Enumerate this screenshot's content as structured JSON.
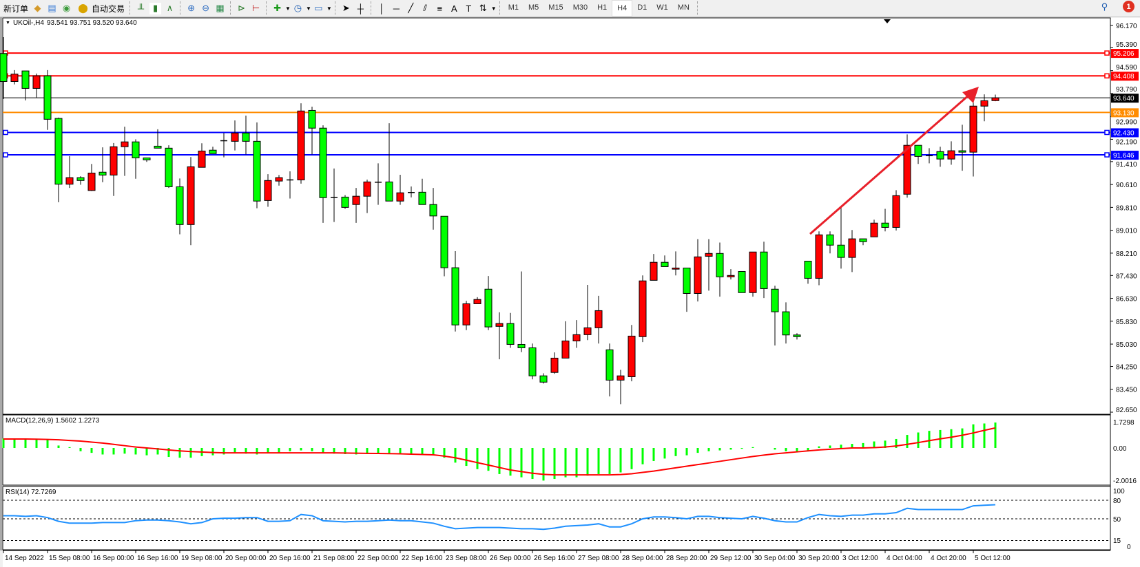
{
  "toolbar": {
    "new_order_label": "新订单",
    "auto_trading_label": "自动交易",
    "timeframes": [
      "M1",
      "M5",
      "M15",
      "M30",
      "H1",
      "H4",
      "D1",
      "W1",
      "MN"
    ],
    "active_timeframe": "H4",
    "notification_count": "1",
    "icons": [
      "new-order-icon",
      "market-watch-icon",
      "data-window-icon",
      "signals-icon",
      "auto-trading-icon",
      "bar-chart-icon",
      "candlestick-icon",
      "line-chart-icon",
      "zoom-in-icon",
      "zoom-out-icon",
      "tile-windows-icon",
      "auto-scroll-icon",
      "chart-shift-icon",
      "indicators-icon",
      "periods-icon",
      "templates-icon",
      "cursor-icon",
      "crosshair-icon",
      "vertical-line-icon",
      "horizontal-line-icon",
      "trendline-icon",
      "fibonacci-icon",
      "equidistant-channel-icon",
      "text-icon",
      "text-label-icon",
      "arrows-icon",
      "search-icon",
      "notification-icon"
    ]
  },
  "chart": {
    "symbol_label": "UKOil-,H4",
    "ohlc_label": "93.541 93.751 93.520 93.640",
    "macd_label": "MACD(12,26,9) 1.5602 1.2273",
    "rsi_label": "RSI(14) 72.7269"
  },
  "chart_data": {
    "type": "candlestick",
    "symbol": "UKOil-",
    "timeframe": "H4",
    "up_color": "#ff0000",
    "down_color": "#00ff00",
    "price_axis_ticks": [
      "96.170",
      "95.390",
      "94.590",
      "93.790",
      "92.990",
      "92.190",
      "91.410",
      "90.610",
      "89.810",
      "89.010",
      "88.210",
      "87.430",
      "86.630",
      "85.830",
      "85.030",
      "84.250",
      "83.450",
      "82.650"
    ],
    "ylim": [
      82.65,
      96.17
    ],
    "time_axis_ticks": [
      "14 Sep 2022",
      "15 Sep 08:00",
      "16 Sep 00:00",
      "16 Sep 16:00",
      "19 Sep 08:00",
      "20 Sep 00:00",
      "20 Sep 16:00",
      "21 Sep 08:00",
      "22 Sep 00:00",
      "22 Sep 16:00",
      "23 Sep 08:00",
      "26 Sep 00:00",
      "26 Sep 16:00",
      "27 Sep 08:00",
      "28 Sep 04:00",
      "28 Sep 20:00",
      "29 Sep 12:00",
      "30 Sep 04:00",
      "30 Sep 20:00",
      "3 Oct 12:00",
      "4 Oct 04:00",
      "4 Oct 20:00",
      "5 Oct 12:00"
    ],
    "ohlc": [
      [
        95.19,
        95.76,
        93.6,
        94.21
      ],
      [
        94.21,
        94.61,
        94.11,
        94.47
      ],
      [
        94.58,
        94.58,
        93.55,
        93.97
      ],
      [
        93.97,
        94.49,
        93.65,
        94.41
      ],
      [
        94.41,
        94.61,
        92.52,
        92.89
      ],
      [
        92.92,
        92.95,
        89.99,
        90.62
      ],
      [
        90.62,
        91.6,
        90.49,
        90.85
      ],
      [
        90.85,
        90.9,
        90.6,
        90.75
      ],
      [
        90.4,
        91.33,
        90.38,
        91.01
      ],
      [
        91.04,
        91.91,
        90.69,
        90.94
      ],
      [
        90.94,
        92.06,
        90.21,
        91.93
      ],
      [
        91.93,
        92.63,
        90.91,
        92.1
      ],
      [
        92.1,
        92.19,
        90.81,
        91.54
      ],
      [
        91.54,
        91.54,
        91.4,
        91.47
      ],
      [
        91.95,
        92.54,
        91.88,
        91.88
      ],
      [
        91.88,
        91.98,
        90.49,
        90.53
      ],
      [
        90.53,
        90.82,
        88.87,
        89.21
      ],
      [
        89.21,
        91.57,
        88.49,
        91.23
      ],
      [
        91.21,
        92.05,
        91.21,
        91.78
      ],
      [
        91.81,
        91.93,
        91.69,
        91.69
      ],
      [
        92.14,
        92.41,
        91.56,
        92.14
      ],
      [
        92.12,
        92.85,
        91.8,
        92.41
      ],
      [
        92.41,
        93.02,
        91.66,
        92.12
      ],
      [
        92.12,
        92.78,
        89.78,
        90.03
      ],
      [
        90.05,
        90.97,
        89.83,
        90.75
      ],
      [
        90.73,
        90.94,
        90.57,
        90.85
      ],
      [
        90.77,
        91.07,
        90.12,
        90.77
      ],
      [
        90.77,
        93.45,
        90.64,
        93.18
      ],
      [
        93.2,
        93.33,
        91.66,
        92.58
      ],
      [
        92.58,
        92.68,
        89.27,
        90.15
      ],
      [
        90.16,
        91.17,
        89.3,
        90.16
      ],
      [
        90.17,
        90.24,
        89.76,
        89.81
      ],
      [
        89.91,
        90.49,
        89.27,
        90.2
      ],
      [
        90.2,
        90.78,
        89.61,
        90.7
      ],
      [
        90.69,
        91.35,
        89.9,
        90.69
      ],
      [
        90.7,
        92.75,
        90.03,
        90.03
      ],
      [
        90.03,
        90.95,
        89.9,
        90.32
      ],
      [
        90.33,
        90.54,
        90.16,
        90.33
      ],
      [
        90.34,
        90.81,
        89.91,
        89.91
      ],
      [
        89.91,
        90.49,
        89.03,
        89.51
      ],
      [
        89.5,
        89.5,
        87.4,
        87.7
      ],
      [
        87.7,
        88.28,
        85.47,
        85.7
      ],
      [
        85.7,
        86.54,
        85.52,
        86.44
      ],
      [
        86.44,
        86.67,
        86.44,
        86.59
      ],
      [
        86.95,
        87.41,
        85.52,
        85.63
      ],
      [
        85.65,
        86.14,
        84.5,
        85.75
      ],
      [
        85.75,
        86.12,
        84.9,
        85.02
      ],
      [
        85.02,
        87.57,
        84.75,
        84.9
      ],
      [
        84.9,
        85.05,
        83.8,
        83.92
      ],
      [
        83.92,
        84.01,
        83.65,
        83.7
      ],
      [
        84.04,
        84.74,
        83.99,
        84.54
      ],
      [
        84.54,
        85.83,
        84.54,
        85.14
      ],
      [
        85.14,
        85.87,
        84.9,
        85.36
      ],
      [
        85.36,
        87.1,
        85.17,
        85.6
      ],
      [
        85.6,
        86.72,
        85.05,
        86.2
      ],
      [
        84.83,
        85.05,
        83.2,
        83.77
      ],
      [
        83.77,
        84.13,
        82.93,
        83.92
      ],
      [
        83.89,
        85.7,
        83.73,
        85.31
      ],
      [
        85.29,
        87.43,
        85.1,
        87.24
      ],
      [
        87.26,
        88.18,
        87.26,
        87.89
      ],
      [
        87.89,
        88.13,
        87.74,
        87.74
      ],
      [
        87.65,
        88.27,
        87.43,
        87.69
      ],
      [
        87.69,
        87.69,
        86.16,
        86.8
      ],
      [
        86.8,
        88.7,
        86.52,
        88.08
      ],
      [
        88.1,
        88.7,
        86.9,
        88.2
      ],
      [
        88.2,
        88.58,
        86.69,
        87.38
      ],
      [
        87.38,
        87.65,
        87.29,
        87.43
      ],
      [
        87.57,
        87.57,
        86.83,
        86.83
      ],
      [
        86.83,
        88.25,
        86.69,
        88.25
      ],
      [
        88.25,
        88.61,
        86.64,
        86.97
      ],
      [
        86.95,
        87.07,
        84.98,
        86.16
      ],
      [
        86.16,
        86.49,
        85.05,
        85.35
      ],
      [
        85.35,
        85.41,
        85.19,
        85.29
      ],
      [
        87.93,
        87.93,
        87.14,
        87.33
      ],
      [
        87.33,
        88.97,
        87.09,
        88.85
      ],
      [
        88.85,
        88.97,
        88.2,
        88.49
      ],
      [
        88.49,
        89.79,
        87.67,
        88.06
      ],
      [
        88.06,
        89.02,
        87.55,
        88.71
      ],
      [
        88.71,
        88.71,
        88.49,
        88.61
      ],
      [
        88.78,
        89.38,
        88.78,
        89.26
      ],
      [
        89.26,
        89.76,
        88.97,
        89.11
      ],
      [
        89.11,
        90.41,
        89.0,
        90.22
      ],
      [
        90.27,
        92.36,
        90.15,
        91.98
      ],
      [
        91.98,
        91.98,
        91.33,
        91.59
      ],
      [
        91.59,
        91.88,
        91.35,
        91.62
      ],
      [
        91.76,
        91.93,
        91.23,
        91.5
      ],
      [
        91.5,
        92.12,
        91.3,
        91.79
      ],
      [
        91.79,
        92.7,
        91.09,
        91.74
      ],
      [
        91.74,
        93.67,
        90.89,
        93.35
      ],
      [
        93.35,
        93.76,
        92.82,
        93.54
      ],
      [
        93.541,
        93.751,
        93.52,
        93.64
      ]
    ],
    "horizontal_lines": [
      {
        "price": "95.206",
        "color": "#ff0000"
      },
      {
        "price": "94.408",
        "color": "#ff0000"
      },
      {
        "price": "93.640",
        "color": "#000000",
        "kind": "current-price"
      },
      {
        "price": "93.130",
        "color": "#ff8c00"
      },
      {
        "price": "92.430",
        "color": "#0000ff"
      },
      {
        "price": "91.646",
        "color": "#0000ff"
      }
    ],
    "trend_arrow_color": "#e8202a",
    "macd": {
      "axis_ticks": [
        "1.7298",
        "0.00",
        "-2.0016"
      ],
      "ylim": [
        -2.0016,
        1.7298
      ],
      "histogram_color": "#00ff00",
      "signal_color": "#ff0000",
      "histogram": [
        0.58,
        0.58,
        0.57,
        0.56,
        0.52,
        0.15,
        0.05,
        -0.2,
        -0.3,
        -0.4,
        -0.4,
        -0.35,
        -0.4,
        -0.45,
        -0.4,
        -0.55,
        -0.6,
        -0.6,
        -0.5,
        -0.45,
        -0.4,
        -0.3,
        -0.35,
        -0.4,
        -0.3,
        -0.3,
        -0.2,
        -0.15,
        -0.2,
        -0.3,
        -0.35,
        -0.38,
        -0.4,
        -0.38,
        -0.36,
        -0.38,
        -0.4,
        -0.4,
        -0.42,
        -0.45,
        -0.6,
        -0.9,
        -1.1,
        -1.3,
        -1.4,
        -1.6,
        -1.7,
        -1.8,
        -1.9,
        -2.0,
        -1.9,
        -1.8,
        -1.8,
        -1.7,
        -1.6,
        -1.6,
        -1.5,
        -1.3,
        -1.0,
        -0.8,
        -0.65,
        -0.5,
        -0.45,
        -0.3,
        -0.2,
        -0.15,
        -0.1,
        -0.05,
        0.05,
        0.0,
        -0.1,
        -0.2,
        -0.25,
        -0.15,
        0.1,
        0.15,
        0.2,
        0.25,
        0.3,
        0.4,
        0.45,
        0.55,
        0.8,
        0.95,
        1.05,
        1.1,
        1.15,
        1.2,
        1.45,
        1.5,
        1.5602
      ],
      "signal": [
        0.55,
        0.55,
        0.55,
        0.54,
        0.52,
        0.5,
        0.46,
        0.42,
        0.36,
        0.3,
        0.22,
        0.14,
        0.06,
        0.0,
        -0.06,
        -0.12,
        -0.18,
        -0.22,
        -0.25,
        -0.28,
        -0.3,
        -0.3,
        -0.3,
        -0.3,
        -0.3,
        -0.3,
        -0.3,
        -0.3,
        -0.3,
        -0.3,
        -0.3,
        -0.31,
        -0.32,
        -0.33,
        -0.34,
        -0.35,
        -0.36,
        -0.38,
        -0.4,
        -0.42,
        -0.5,
        -0.6,
        -0.75,
        -0.9,
        -1.05,
        -1.2,
        -1.35,
        -1.45,
        -1.55,
        -1.62,
        -1.65,
        -1.65,
        -1.65,
        -1.65,
        -1.65,
        -1.65,
        -1.63,
        -1.58,
        -1.5,
        -1.42,
        -1.32,
        -1.22,
        -1.12,
        -1.02,
        -0.92,
        -0.82,
        -0.72,
        -0.62,
        -0.52,
        -0.44,
        -0.36,
        -0.3,
        -0.24,
        -0.18,
        -0.12,
        -0.08,
        -0.04,
        0.0,
        0.0,
        0.02,
        0.06,
        0.12,
        0.22,
        0.33,
        0.45,
        0.56,
        0.66,
        0.78,
        0.92,
        1.08,
        1.2273
      ]
    },
    "rsi": {
      "axis_ticks": [
        "100",
        "80",
        "50",
        "15",
        "0"
      ],
      "levels": [
        80,
        50,
        15
      ],
      "ylim": [
        0,
        100
      ],
      "line_color": "#1e90ff",
      "values": [
        55,
        55,
        54,
        55,
        52,
        46,
        43,
        43,
        43,
        44,
        44,
        44,
        47,
        48,
        48,
        47,
        45,
        42,
        44,
        50,
        51,
        51,
        52,
        52,
        46,
        46,
        47,
        57,
        55,
        47,
        46,
        45,
        46,
        46,
        47,
        48,
        47,
        47,
        45,
        43,
        38,
        34,
        35,
        36,
        36,
        36,
        35,
        34,
        34,
        33,
        35,
        38,
        39,
        40,
        42,
        37,
        37,
        42,
        50,
        53,
        53,
        52,
        50,
        54,
        54,
        52,
        51,
        50,
        54,
        51,
        47,
        45,
        45,
        52,
        57,
        55,
        54,
        56,
        56,
        58,
        58,
        60,
        67,
        65,
        65,
        65,
        65,
        65,
        71,
        72,
        72.7269
      ]
    }
  }
}
